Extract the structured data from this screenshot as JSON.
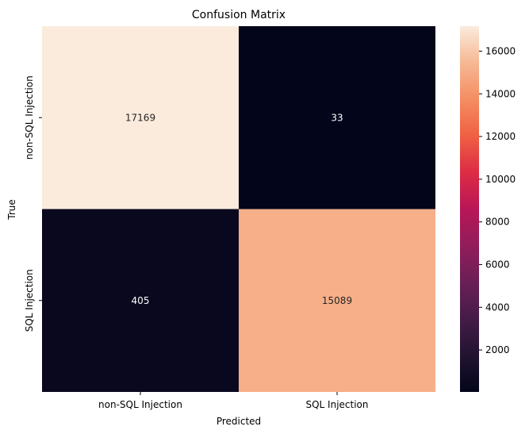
{
  "chart_data": {
    "type": "heatmap",
    "title": "Confusion Matrix",
    "xlabel": "Predicted",
    "ylabel": "True",
    "x_categories": [
      "non-SQL Injection",
      "SQL Injection"
    ],
    "y_categories": [
      "non-SQL Injection",
      "SQL Injection"
    ],
    "values": [
      [
        17169,
        33
      ],
      [
        405,
        15089
      ]
    ],
    "annotations": [
      [
        "17169",
        "33"
      ],
      [
        "405",
        "15089"
      ]
    ],
    "colormap": "rocket",
    "vmin": 33,
    "vmax": 17169,
    "colorbar_ticks": [
      2000,
      4000,
      6000,
      8000,
      10000,
      12000,
      14000,
      16000
    ],
    "colorbar_tick_labels": [
      "2000",
      "4000",
      "6000",
      "8000",
      "10000",
      "12000",
      "14000",
      "16000"
    ]
  }
}
